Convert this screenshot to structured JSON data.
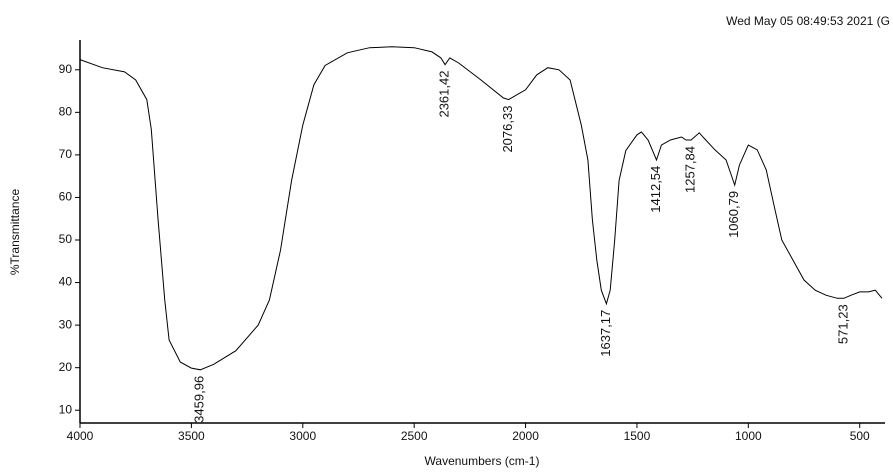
{
  "chart_data": {
    "type": "line",
    "title": "Wed May 05 08:49:53 2021 (G",
    "x_label": "Wavenumbers (cm-1)",
    "y_label": "%Transmittance",
    "x": [
      4000,
      3900,
      3800,
      3750,
      3700,
      3680,
      3650,
      3620,
      3600,
      3550,
      3500,
      3460,
      3400,
      3300,
      3200,
      3150,
      3100,
      3050,
      3000,
      2950,
      2900,
      2800,
      2700,
      2600,
      2500,
      2420,
      2380,
      2361,
      2340,
      2300,
      2200,
      2100,
      2076,
      2000,
      1950,
      1900,
      1850,
      1800,
      1750,
      1720,
      1700,
      1680,
      1660,
      1637,
      1620,
      1600,
      1580,
      1550,
      1500,
      1480,
      1450,
      1412,
      1390,
      1350,
      1300,
      1280,
      1257,
      1220,
      1200,
      1150,
      1100,
      1061,
      1040,
      1000,
      960,
      920,
      880,
      850,
      800,
      750,
      700,
      650,
      600,
      571,
      540,
      500,
      460,
      430,
      400
    ],
    "series": [
      {
        "color": "#000000",
        "values": [
          92.4,
          90.5,
          89.5,
          87.6,
          83,
          76,
          55,
          36,
          26.5,
          21.3,
          19.9,
          19.5,
          20.8,
          24,
          30,
          35.9,
          47.6,
          64,
          77,
          86.5,
          91,
          94,
          95.2,
          95.4,
          95.2,
          94.2,
          92.8,
          91.2,
          92.8,
          91.6,
          87.6,
          83.4,
          83,
          85.3,
          88.8,
          90.5,
          90,
          87.6,
          77,
          68.8,
          54.7,
          45.3,
          38.2,
          35,
          38.2,
          50,
          64,
          71,
          74.7,
          75.4,
          73.5,
          68.8,
          72.3,
          73.5,
          74.2,
          73.5,
          73.5,
          75.2,
          74,
          71.2,
          68.8,
          62.9,
          67.6,
          72.3,
          71.2,
          66.5,
          57,
          50,
          45.3,
          40.6,
          38.2,
          37,
          36.3,
          36.3,
          37,
          37.8,
          37.8,
          38.2,
          36.3
        ]
      }
    ],
    "annotations": [
      {
        "x": 3459.96,
        "label": "3459,96"
      },
      {
        "x": 2361.42,
        "label": "2361,42"
      },
      {
        "x": 2076.33,
        "label": "2076,33"
      },
      {
        "x": 1637.17,
        "label": "1637,17"
      },
      {
        "x": 1412.54,
        "label": "1412,54"
      },
      {
        "x": 1257.84,
        "label": "1257,84"
      },
      {
        "x": 1060.79,
        "label": "1060,79"
      },
      {
        "x": 571.23,
        "label": "571,23"
      }
    ],
    "xlim": [
      4000,
      400
    ],
    "ylim": [
      7,
      97
    ],
    "xticks": [
      4000,
      3500,
      3000,
      2500,
      2000,
      1500,
      1000,
      500
    ],
    "yticks": [
      10,
      20,
      30,
      40,
      50,
      60,
      70,
      80,
      90
    ]
  }
}
